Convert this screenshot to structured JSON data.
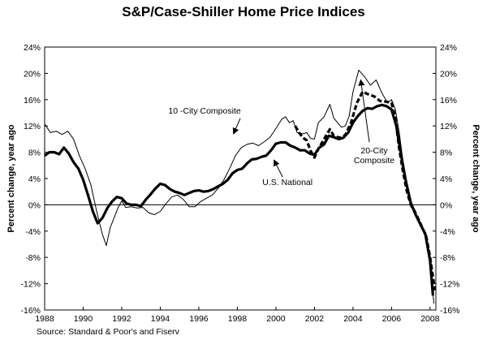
{
  "chart_data": {
    "type": "line",
    "title": "S&P/Case-Shiller Home Price Indices",
    "source": "Source: Standard & Poor's and Fiserv",
    "ylabel_left": "Percent change, year ago",
    "ylabel_right": "Percent change, year ago",
    "ylim": [
      -16,
      24
    ],
    "xlim": [
      1988,
      2008.3
    ],
    "y_ticks": [
      "24%",
      "20%",
      "16%",
      "12%",
      "8%",
      "4%",
      "0%",
      "-4%",
      "-8%",
      "-12%",
      "-16%"
    ],
    "y_tick_values": [
      24,
      20,
      16,
      12,
      8,
      4,
      0,
      -4,
      -8,
      -12,
      -16
    ],
    "x_ticks": [
      "1988",
      "1990",
      "1992",
      "1994",
      "1996",
      "1998",
      "2000",
      "2002",
      "2004",
      "2006",
      "2008"
    ],
    "x_tick_values": [
      1988,
      1990,
      1992,
      1994,
      1996,
      1998,
      2000,
      2002,
      2004,
      2006,
      2008
    ],
    "grid": false,
    "series": [
      {
        "name": "10 -City Composite",
        "style": "thin",
        "color": "#000000",
        "points": [
          [
            1988.0,
            12.3
          ],
          [
            1988.3,
            11.0
          ],
          [
            1988.6,
            11.2
          ],
          [
            1988.9,
            10.7
          ],
          [
            1989.2,
            11.2
          ],
          [
            1989.5,
            10.0
          ],
          [
            1989.8,
            7.5
          ],
          [
            1990.1,
            5.5
          ],
          [
            1990.4,
            3.0
          ],
          [
            1990.7,
            -1.0
          ],
          [
            1991.0,
            -4.5
          ],
          [
            1991.2,
            -6.2
          ],
          [
            1991.4,
            -3.5
          ],
          [
            1991.6,
            -2.0
          ],
          [
            1991.8,
            -0.5
          ],
          [
            1992.0,
            0.6
          ],
          [
            1992.2,
            -0.4
          ],
          [
            1992.5,
            -0.3
          ],
          [
            1992.8,
            -0.5
          ],
          [
            1993.1,
            -0.4
          ],
          [
            1993.4,
            -1.2
          ],
          [
            1993.7,
            -1.5
          ],
          [
            1994.0,
            -1.0
          ],
          [
            1994.3,
            0.2
          ],
          [
            1994.6,
            1.2
          ],
          [
            1994.9,
            1.5
          ],
          [
            1995.2,
            0.8
          ],
          [
            1995.5,
            -0.3
          ],
          [
            1995.8,
            -0.3
          ],
          [
            1996.1,
            0.5
          ],
          [
            1996.4,
            1.0
          ],
          [
            1996.7,
            1.5
          ],
          [
            1997.0,
            2.5
          ],
          [
            1997.3,
            3.8
          ],
          [
            1997.6,
            5.5
          ],
          [
            1997.9,
            7.5
          ],
          [
            1998.2,
            8.7
          ],
          [
            1998.5,
            9.2
          ],
          [
            1998.8,
            9.4
          ],
          [
            1999.1,
            9.0
          ],
          [
            1999.4,
            9.6
          ],
          [
            1999.7,
            10.3
          ],
          [
            2000.0,
            11.6
          ],
          [
            2000.3,
            13.0
          ],
          [
            2000.5,
            13.4
          ],
          [
            2000.7,
            12.5
          ],
          [
            2000.9,
            12.8
          ],
          [
            2001.1,
            11.0
          ],
          [
            2001.4,
            10.8
          ],
          [
            2001.6,
            11.0
          ],
          [
            2001.8,
            10.1
          ],
          [
            2002.0,
            10.0
          ],
          [
            2002.2,
            12.5
          ],
          [
            2002.5,
            13.4
          ],
          [
            2002.8,
            15.3
          ],
          [
            2003.0,
            13.2
          ],
          [
            2003.2,
            12.5
          ],
          [
            2003.4,
            11.8
          ],
          [
            2003.6,
            12.0
          ],
          [
            2003.8,
            13.5
          ],
          [
            2004.0,
            17.2
          ],
          [
            2004.3,
            20.5
          ],
          [
            2004.6,
            19.5
          ],
          [
            2004.9,
            18.2
          ],
          [
            2005.2,
            19.0
          ],
          [
            2005.5,
            17.0
          ],
          [
            2005.8,
            15.5
          ],
          [
            2006.0,
            16.0
          ],
          [
            2006.2,
            14.5
          ],
          [
            2006.4,
            11.0
          ],
          [
            2006.6,
            6.5
          ],
          [
            2006.8,
            2.5
          ],
          [
            2007.0,
            -0.2
          ],
          [
            2007.2,
            -1.2
          ],
          [
            2007.4,
            -2.6
          ],
          [
            2007.6,
            -3.8
          ],
          [
            2007.8,
            -5.0
          ],
          [
            2008.0,
            -9.5
          ],
          [
            2008.2,
            -15.0
          ]
        ]
      },
      {
        "name": "U.S. National",
        "style": "thick",
        "color": "#000000",
        "points": [
          [
            1988.0,
            7.5
          ],
          [
            1988.25,
            8.0
          ],
          [
            1988.5,
            8.0
          ],
          [
            1988.75,
            7.7
          ],
          [
            1989.0,
            8.7
          ],
          [
            1989.25,
            7.8
          ],
          [
            1989.5,
            6.5
          ],
          [
            1989.75,
            5.5
          ],
          [
            1990.0,
            3.8
          ],
          [
            1990.25,
            1.5
          ],
          [
            1990.5,
            -1.0
          ],
          [
            1990.75,
            -2.8
          ],
          [
            1991.0,
            -2.0
          ],
          [
            1991.25,
            -0.5
          ],
          [
            1991.5,
            0.5
          ],
          [
            1991.75,
            1.2
          ],
          [
            1992.0,
            1.0
          ],
          [
            1992.25,
            0.2
          ],
          [
            1992.5,
            0.0
          ],
          [
            1992.75,
            0.0
          ],
          [
            1993.0,
            -0.2
          ],
          [
            1993.25,
            0.8
          ],
          [
            1993.5,
            1.6
          ],
          [
            1993.75,
            2.5
          ],
          [
            1994.0,
            3.2
          ],
          [
            1994.25,
            3.0
          ],
          [
            1994.5,
            2.4
          ],
          [
            1994.75,
            2.0
          ],
          [
            1995.0,
            1.8
          ],
          [
            1995.25,
            1.5
          ],
          [
            1995.5,
            1.8
          ],
          [
            1995.75,
            2.1
          ],
          [
            1996.0,
            2.2
          ],
          [
            1996.25,
            2.0
          ],
          [
            1996.5,
            2.1
          ],
          [
            1996.75,
            2.4
          ],
          [
            1997.0,
            2.8
          ],
          [
            1997.25,
            3.2
          ],
          [
            1997.5,
            3.8
          ],
          [
            1997.75,
            4.8
          ],
          [
            1998.0,
            5.3
          ],
          [
            1998.25,
            5.5
          ],
          [
            1998.5,
            6.3
          ],
          [
            1998.75,
            6.9
          ],
          [
            1999.0,
            7.0
          ],
          [
            1999.25,
            7.3
          ],
          [
            1999.5,
            7.5
          ],
          [
            1999.75,
            8.3
          ],
          [
            2000.0,
            9.3
          ],
          [
            2000.25,
            9.5
          ],
          [
            2000.5,
            9.5
          ],
          [
            2000.75,
            9.0
          ],
          [
            2001.0,
            8.7
          ],
          [
            2001.25,
            8.3
          ],
          [
            2001.5,
            8.3
          ],
          [
            2001.75,
            7.8
          ],
          [
            2002.0,
            7.6
          ],
          [
            2002.25,
            8.7
          ],
          [
            2002.5,
            9.2
          ],
          [
            2002.75,
            10.5
          ],
          [
            2003.0,
            10.3
          ],
          [
            2003.25,
            10.0
          ],
          [
            2003.5,
            10.2
          ],
          [
            2003.75,
            11.0
          ],
          [
            2004.0,
            12.5
          ],
          [
            2004.25,
            13.5
          ],
          [
            2004.5,
            14.3
          ],
          [
            2004.75,
            14.7
          ],
          [
            2005.0,
            14.6
          ],
          [
            2005.25,
            15.0
          ],
          [
            2005.5,
            15.2
          ],
          [
            2005.75,
            15.0
          ],
          [
            2006.0,
            14.5
          ],
          [
            2006.25,
            12.0
          ],
          [
            2006.5,
            7.5
          ],
          [
            2006.75,
            3.5
          ],
          [
            2007.0,
            0.3
          ],
          [
            2007.25,
            -1.5
          ],
          [
            2007.5,
            -3.0
          ],
          [
            2007.75,
            -4.4
          ],
          [
            2008.0,
            -8.5
          ],
          [
            2008.15,
            -13.8
          ]
        ]
      },
      {
        "name": "20-City Composite",
        "style": "dashed",
        "color": "#000000",
        "points": [
          [
            2001.0,
            12.0
          ],
          [
            2001.2,
            11.0
          ],
          [
            2001.4,
            10.2
          ],
          [
            2001.6,
            9.8
          ],
          [
            2001.8,
            8.2
          ],
          [
            2002.0,
            7.2
          ],
          [
            2002.2,
            8.5
          ],
          [
            2002.5,
            10.0
          ],
          [
            2002.8,
            11.5
          ],
          [
            2003.0,
            10.5
          ],
          [
            2003.3,
            10.2
          ],
          [
            2003.6,
            10.6
          ],
          [
            2003.9,
            12.5
          ],
          [
            2004.2,
            15.5
          ],
          [
            2004.5,
            17.2
          ],
          [
            2004.8,
            16.8
          ],
          [
            2005.1,
            16.5
          ],
          [
            2005.4,
            15.8
          ],
          [
            2005.7,
            15.7
          ],
          [
            2006.0,
            15.5
          ],
          [
            2006.2,
            13.2
          ],
          [
            2006.4,
            8.5
          ],
          [
            2006.6,
            5.0
          ],
          [
            2006.8,
            2.0
          ],
          [
            2007.0,
            0.0
          ],
          [
            2007.2,
            -1.0
          ],
          [
            2007.4,
            -2.2
          ],
          [
            2007.6,
            -3.5
          ],
          [
            2007.8,
            -4.8
          ],
          [
            2008.0,
            -8.0
          ],
          [
            2008.25,
            -13.0
          ]
        ]
      }
    ],
    "annotations": [
      {
        "label_lines": [
          "10 -City Composite"
        ],
        "series": "10 -City Composite",
        "label_at": [
          1996.3,
          13.9
        ],
        "arrow_to": [
          1997.8,
          10.8
        ]
      },
      {
        "label_lines": [
          "U.S. National"
        ],
        "series": "U.S. National",
        "label_at": [
          2000.6,
          3.0
        ],
        "arrow_to": [
          1999.9,
          6.8
        ]
      },
      {
        "label_lines": [
          "20-City",
          "Composite"
        ],
        "series": "20-City Composite",
        "label_at": [
          2005.1,
          7.8
        ],
        "arrow_to": [
          2004.4,
          19.0
        ]
      }
    ]
  }
}
